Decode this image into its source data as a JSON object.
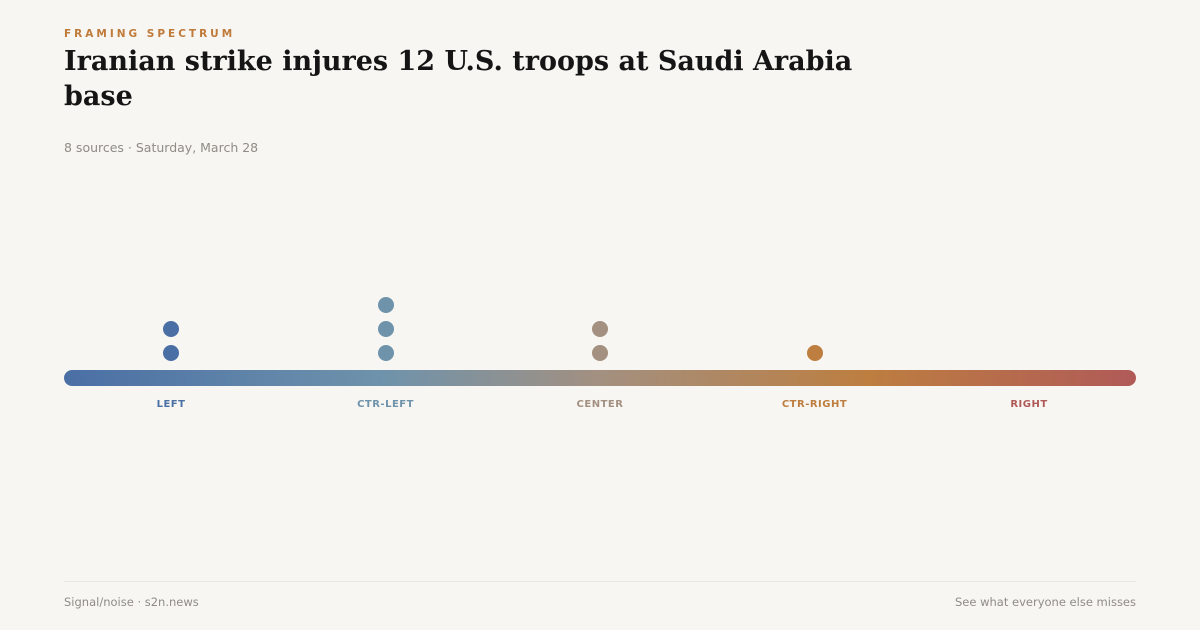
{
  "header": {
    "eyebrow": "FRAMING SPECTRUM",
    "title": "Iranian strike injures 12 U.S. troops at Saudi Arabia base",
    "meta": "8 sources · Saturday, March 28"
  },
  "chart_data": {
    "type": "scatter",
    "title": "Framing spectrum",
    "categories": [
      "LEFT",
      "CTR-LEFT",
      "CENTER",
      "CTR-RIGHT",
      "RIGHT"
    ],
    "values": [
      2,
      3,
      2,
      1,
      0
    ],
    "colors": [
      "#4a6fa5",
      "#6f93ab",
      "#a39080",
      "#bd7e40",
      "#b05a58"
    ]
  },
  "footer": {
    "left": "Signal/noise · s2n.news",
    "right": "See what everyone else misses"
  }
}
